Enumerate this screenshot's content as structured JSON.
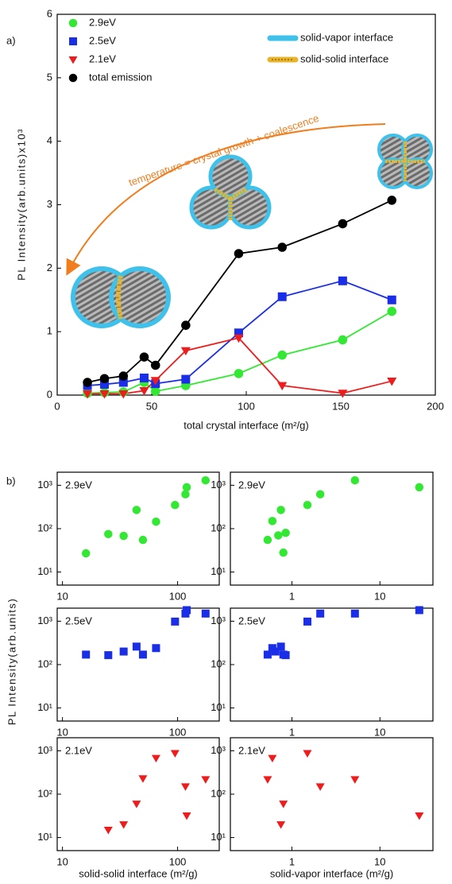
{
  "chart_data": [
    {
      "type": "line",
      "panel_label": "a)",
      "ylabel": "PL Intensity(arb.units)x10³",
      "xlabel": "total crystal interface (m²/g)",
      "annotation": "temperature = crystal growth + coalescence",
      "xlim": [
        0,
        200
      ],
      "ylim": [
        0,
        6
      ],
      "xticks": [
        0,
        50,
        100,
        150,
        200
      ],
      "yticks": [
        0,
        1,
        2,
        3,
        4,
        5,
        6
      ],
      "x": [
        16,
        25,
        35,
        46,
        52,
        68,
        96,
        119,
        151,
        177
      ],
      "series": [
        {
          "name": "2.9eV",
          "color": "#33e833",
          "marker": "circle",
          "values": [
            0.03,
            0.04,
            0.05,
            0.2,
            0.06,
            0.15,
            0.34,
            0.63,
            0.87,
            1.32
          ]
        },
        {
          "name": "2.5eV",
          "color": "#1a2ee8",
          "marker": "square",
          "values": [
            0.15,
            0.17,
            0.2,
            0.27,
            0.18,
            0.25,
            0.98,
            1.55,
            1.8,
            1.5
          ]
        },
        {
          "name": "2.1eV",
          "color": "#ee1c1c",
          "marker": "triangle",
          "values": [
            0.02,
            0.02,
            0.02,
            0.07,
            0.23,
            0.7,
            0.9,
            0.15,
            0.03,
            0.22
          ]
        },
        {
          "name": "total emission",
          "color": "#000000",
          "marker": "circle",
          "values": [
            0.2,
            0.26,
            0.3,
            0.6,
            0.47,
            1.1,
            2.23,
            2.33,
            2.7,
            3.07
          ]
        }
      ],
      "interface_legend": [
        {
          "label": "solid-vapor interface",
          "color": "#3ec1ea"
        },
        {
          "label": "solid-solid interface",
          "color": "#e8b52a"
        }
      ]
    },
    {
      "type": "scatter",
      "panel_label": "b)",
      "ylabel": "PL Intensity(arb.units)",
      "label": "2.9eV",
      "log_x": true,
      "log_y": true,
      "xlim": [
        9,
        230
      ],
      "ylim": [
        5,
        2000
      ],
      "xticks": [
        10,
        100
      ],
      "yticks": [
        {
          "value": 10,
          "label": "10¹"
        },
        {
          "value": 100,
          "label": "10²"
        },
        {
          "value": 1000,
          "label": "10³"
        }
      ],
      "series": [
        {
          "color": "#33e833",
          "marker": "circle",
          "x": [
            16,
            25,
            34,
            44,
            50,
            65,
            95,
            117,
            120,
            175
          ],
          "values": [
            27,
            75,
            68,
            270,
            55,
            145,
            350,
            620,
            900,
            1300
          ]
        }
      ]
    },
    {
      "type": "scatter",
      "label": "2.9eV",
      "log_x": true,
      "log_y": true,
      "xlim": [
        0.2,
        40
      ],
      "ylim": [
        5,
        2000
      ],
      "xticks": [
        1,
        10
      ],
      "yticks": [
        {
          "value": 10,
          "label": "10¹"
        },
        {
          "value": 100,
          "label": "10²"
        },
        {
          "value": 1000,
          "label": "10³"
        }
      ],
      "series": [
        {
          "color": "#33e833",
          "marker": "circle",
          "x": [
            0.53,
            0.6,
            0.7,
            0.75,
            0.8,
            0.85,
            1.5,
            2.1,
            5.2,
            28
          ],
          "values": [
            55,
            150,
            70,
            270,
            28,
            80,
            350,
            620,
            1300,
            900
          ]
        }
      ]
    },
    {
      "type": "scatter",
      "label": "2.5eV",
      "log_x": true,
      "log_y": true,
      "xlim": [
        9,
        230
      ],
      "ylim": [
        5,
        2000
      ],
      "xticks": [
        10,
        100
      ],
      "yticks": [
        {
          "value": 10,
          "label": "10¹"
        },
        {
          "value": 100,
          "label": "10²"
        },
        {
          "value": 1000,
          "label": "10³"
        }
      ],
      "series": [
        {
          "color": "#1a2ee8",
          "marker": "square",
          "x": [
            16,
            25,
            34,
            44,
            50,
            65,
            95,
            117,
            120,
            175
          ],
          "values": [
            170,
            165,
            200,
            260,
            170,
            240,
            980,
            1500,
            1800,
            1500
          ]
        }
      ]
    },
    {
      "type": "scatter",
      "label": "2.5eV",
      "log_x": true,
      "log_y": true,
      "xlim": [
        0.2,
        40
      ],
      "ylim": [
        5,
        2000
      ],
      "xticks": [
        1,
        10
      ],
      "yticks": [
        {
          "value": 10,
          "label": "10¹"
        },
        {
          "value": 100,
          "label": "10²"
        },
        {
          "value": 1000,
          "label": "10³"
        }
      ],
      "series": [
        {
          "color": "#1a2ee8",
          "marker": "square",
          "x": [
            0.53,
            0.6,
            0.65,
            0.75,
            0.8,
            0.85,
            1.5,
            2.1,
            5.2,
            28
          ],
          "values": [
            170,
            240,
            200,
            260,
            170,
            165,
            980,
            1500,
            1500,
            1800
          ]
        }
      ]
    },
    {
      "type": "scatter",
      "label": "2.1eV",
      "log_x": true,
      "log_y": true,
      "xlabel": "solid-solid interface (m²/g)",
      "xlim": [
        9,
        230
      ],
      "ylim": [
        5,
        2000
      ],
      "xticks": [
        10,
        100
      ],
      "yticks": [
        {
          "value": 10,
          "label": "10¹"
        },
        {
          "value": 100,
          "label": "10²"
        },
        {
          "value": 1000,
          "label": "10³"
        }
      ],
      "series": [
        {
          "color": "#ee1c1c",
          "marker": "triangle",
          "x": [
            25,
            34,
            44,
            50,
            65,
            95,
            117,
            120,
            175
          ],
          "values": [
            15,
            20,
            60,
            230,
            680,
            880,
            150,
            32,
            220
          ]
        }
      ]
    },
    {
      "type": "scatter",
      "label": "2.1eV",
      "log_x": true,
      "log_y": true,
      "xlabel": "solid-vapor interface (m²/g)",
      "xlim": [
        0.2,
        40
      ],
      "ylim": [
        5,
        2000
      ],
      "xticks": [
        1,
        10
      ],
      "yticks": [
        {
          "value": 10,
          "label": "10¹"
        },
        {
          "value": 100,
          "label": "10²"
        },
        {
          "value": 1000,
          "label": "10³"
        }
      ],
      "series": [
        {
          "color": "#ee1c1c",
          "marker": "triangle",
          "x": [
            0.53,
            0.6,
            0.75,
            0.8,
            1.5,
            2.1,
            5.2,
            28
          ],
          "values": [
            220,
            680,
            20,
            60,
            880,
            150,
            220,
            32
          ]
        }
      ]
    }
  ]
}
